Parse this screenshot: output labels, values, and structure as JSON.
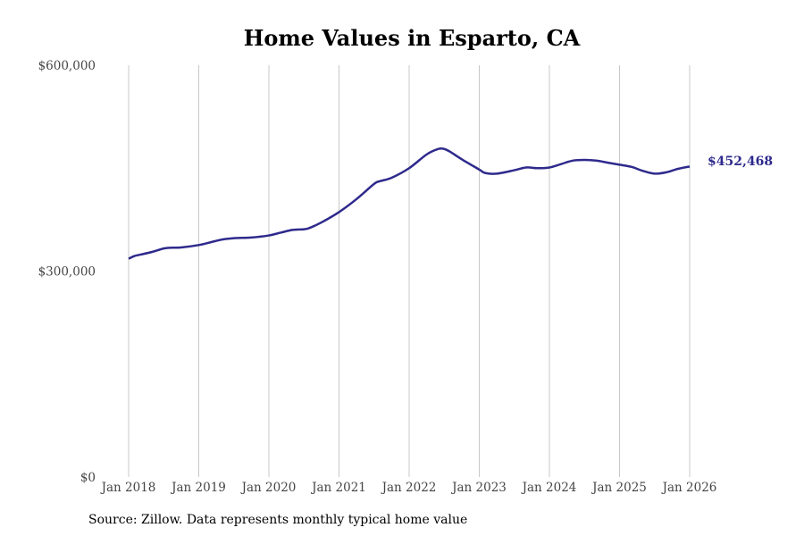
{
  "chart_data": {
    "type": "line",
    "title": "Home Values in Esparto, CA",
    "xlabel": "",
    "ylabel": "",
    "ylim": [
      0,
      600000
    ],
    "xlim": [
      "2018-01",
      "2026-01"
    ],
    "y_ticks": [
      {
        "value": 0,
        "label": "$0"
      },
      {
        "value": 300000,
        "label": "$300,000"
      },
      {
        "value": 600000,
        "label": "$600,000"
      }
    ],
    "x_ticks": [
      {
        "value": "2018-01",
        "label": "Jan 2018"
      },
      {
        "value": "2019-01",
        "label": "Jan 2019"
      },
      {
        "value": "2020-01",
        "label": "Jan 2020"
      },
      {
        "value": "2021-01",
        "label": "Jan 2021"
      },
      {
        "value": "2022-01",
        "label": "Jan 2022"
      },
      {
        "value": "2023-01",
        "label": "Jan 2023"
      },
      {
        "value": "2024-01",
        "label": "Jan 2024"
      },
      {
        "value": "2025-01",
        "label": "Jan 2025"
      },
      {
        "value": "2026-01",
        "label": "Jan 2026"
      }
    ],
    "grid": {
      "vertical": true,
      "horizontal": false
    },
    "line_color": "#2e2a8c",
    "grid_color": "#c8c8c8",
    "series": [
      {
        "end_label": "$452,468",
        "points": [
          [
            "2018-01",
            318000
          ],
          [
            "2018-02",
            322000
          ],
          [
            "2018-03",
            324000
          ],
          [
            "2018-05",
            328000
          ],
          [
            "2018-07",
            333000
          ],
          [
            "2018-08",
            334000
          ],
          [
            "2018-10",
            334500
          ],
          [
            "2019-01",
            338000
          ],
          [
            "2019-03",
            342000
          ],
          [
            "2019-05",
            346000
          ],
          [
            "2019-07",
            348000
          ],
          [
            "2019-10",
            349000
          ],
          [
            "2020-01",
            352000
          ],
          [
            "2020-03",
            356000
          ],
          [
            "2020-05",
            360000
          ],
          [
            "2020-07",
            361000
          ],
          [
            "2020-08",
            363000
          ],
          [
            "2020-10",
            371000
          ],
          [
            "2021-01",
            386000
          ],
          [
            "2021-04",
            405000
          ],
          [
            "2021-07",
            427000
          ],
          [
            "2021-08",
            431000
          ],
          [
            "2021-10",
            436000
          ],
          [
            "2022-01",
            450000
          ],
          [
            "2022-04",
            470000
          ],
          [
            "2022-06",
            478000
          ],
          [
            "2022-07",
            478000
          ],
          [
            "2022-08",
            474000
          ],
          [
            "2022-10",
            463000
          ],
          [
            "2023-01",
            448000
          ],
          [
            "2023-02",
            443000
          ],
          [
            "2023-04",
            442000
          ],
          [
            "2023-07",
            447000
          ],
          [
            "2023-09",
            451000
          ],
          [
            "2023-11",
            450000
          ],
          [
            "2024-01",
            451000
          ],
          [
            "2024-03",
            456000
          ],
          [
            "2024-05",
            461000
          ],
          [
            "2024-07",
            462000
          ],
          [
            "2024-09",
            461000
          ],
          [
            "2024-11",
            458000
          ],
          [
            "2025-01",
            455000
          ],
          [
            "2025-03",
            452000
          ],
          [
            "2025-05",
            446000
          ],
          [
            "2025-07",
            442000
          ],
          [
            "2025-09",
            444000
          ],
          [
            "2025-11",
            449000
          ],
          [
            "2026-01",
            452468
          ]
        ]
      }
    ]
  },
  "source_text": "Source: Zillow. Data represents monthly typical home value"
}
